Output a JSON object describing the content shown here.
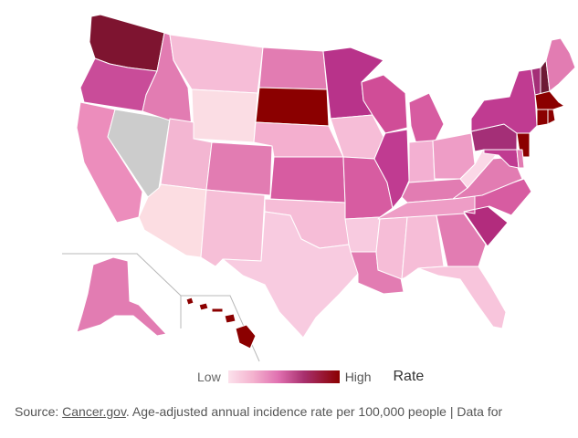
{
  "legend": {
    "low_label": "Low",
    "high_label": "High",
    "title": "Rate",
    "gradient": [
      "#fce2ec",
      "#f4b3cf",
      "#e070b0",
      "#a8306e",
      "#8b0000"
    ]
  },
  "source": {
    "prefix": "Source: ",
    "link_text": "Cancer.gov",
    "suffix": ". Age-adjusted annual incidence rate per 100,000 people | Data for"
  },
  "no_data_color": "#cccccc",
  "states": {
    "WA": "#7e1430",
    "OR": "#c94c99",
    "CA": "#ec8dbc",
    "NV": "#cccccc",
    "ID": "#e27cb2",
    "MT": "#f6bdd7",
    "WY": "#fbdde4",
    "UT": "#f3b6d2",
    "AZ": "#fcdde2",
    "CO": "#e27cb2",
    "NM": "#f6bfd7",
    "ND": "#e27cb2",
    "SD": "#8b0000",
    "NE": "#f4afcf",
    "KS": "#d75ca1",
    "OK": "#f6bdd7",
    "TX": "#f8cbe0",
    "MN": "#b8338a",
    "IA": "#f6bdd7",
    "MO": "#d75ca1",
    "AR": "#f8cbe0",
    "LA": "#e27cb2",
    "WI": "#d04d97",
    "IL": "#c03b91",
    "MI": "#d75ca1",
    "IN": "#f3b0d2",
    "OH": "#ee9dc6",
    "KY": "#e27cb2",
    "TN": "#ee9dc6",
    "MS": "#f6bdd7",
    "AL": "#f6bdd7",
    "GA": "#e27cb2",
    "FL": "#f8c5dc",
    "SC": "#b22c7d",
    "NC": "#d75ca1",
    "VA": "#e27cb2",
    "WV": "#fbd8e7",
    "PA": "#a42f77",
    "NY": "#c03b91",
    "VT": "#a42f77",
    "NH": "#6d1a35",
    "ME": "#e27cb2",
    "MA": "#8b0000",
    "CT": "#8b0000",
    "RI": "#8b0000",
    "NJ": "#8b0000",
    "MD": "#c03b91",
    "DE": "#e27cb2",
    "AK": "#e27cb2",
    "HI": "#8b0000"
  }
}
